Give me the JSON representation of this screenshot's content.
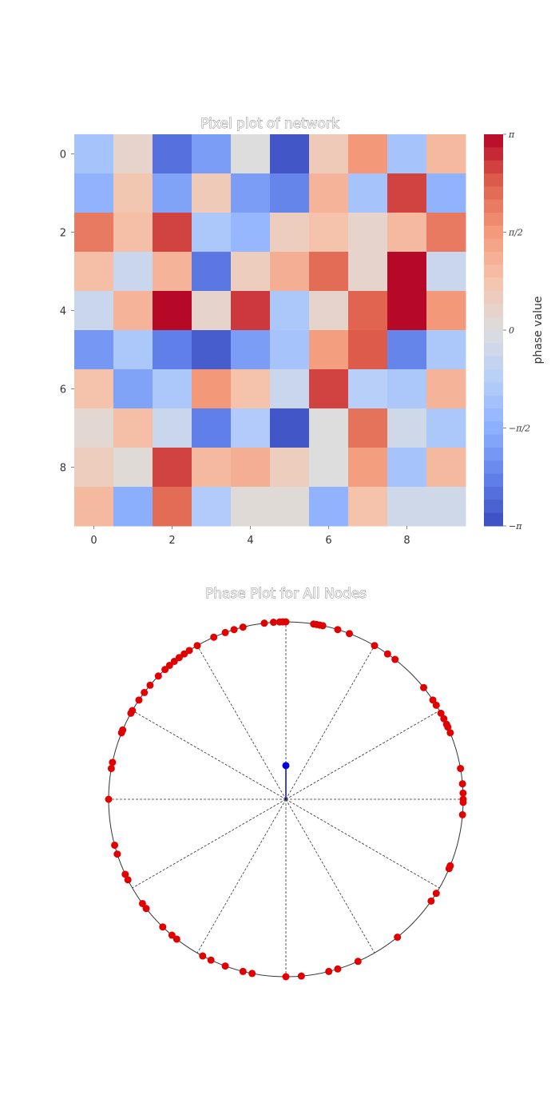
{
  "chart_data": [
    {
      "type": "heatmap",
      "title": "Pixel plot of network",
      "x_ticks": [
        "0",
        "2",
        "4",
        "6",
        "8"
      ],
      "y_ticks": [
        "0",
        "2",
        "4",
        "6",
        "8"
      ],
      "colorbar": {
        "label": "phase value",
        "range": [
          -3.1416,
          3.1416
        ],
        "ticks": [
          {
            "value": 3.1416,
            "label": "π"
          },
          {
            "value": 1.5708,
            "label": "π/2"
          },
          {
            "value": 0,
            "label": "0"
          },
          {
            "value": -1.5708,
            "label": "−π/2"
          },
          {
            "value": -3.1416,
            "label": "−π"
          }
        ],
        "colormap": "coolwarm"
      },
      "values": [
        [
          -1.1,
          0.3,
          -2.6,
          -1.9,
          0.0,
          -3.0,
          0.6,
          1.6,
          -1.1,
          1.0
        ],
        [
          -1.5,
          0.7,
          -1.8,
          0.6,
          -1.9,
          -2.3,
          1.1,
          -1.1,
          2.6,
          -1.5
        ],
        [
          2.0,
          0.9,
          2.6,
          -1.0,
          -1.4,
          0.5,
          0.8,
          0.3,
          1.0,
          2.0
        ],
        [
          0.9,
          -0.4,
          1.1,
          -2.5,
          0.5,
          1.2,
          2.2,
          0.3,
          3.1,
          -0.4
        ],
        [
          -0.4,
          1.1,
          3.1,
          0.3,
          2.7,
          -1.0,
          0.3,
          2.3,
          3.1,
          1.6
        ],
        [
          -2.0,
          -1.0,
          -2.4,
          -2.9,
          -1.9,
          -1.1,
          1.5,
          2.4,
          -2.3,
          -1.0
        ],
        [
          0.8,
          -1.8,
          -1.0,
          1.6,
          0.8,
          -0.4,
          2.6,
          -0.8,
          -1.0,
          1.1
        ],
        [
          0.2,
          0.9,
          -0.4,
          -2.4,
          -0.9,
          -3.0,
          0.0,
          2.1,
          -0.3,
          -1.0
        ],
        [
          0.5,
          0.1,
          2.6,
          1.0,
          1.2,
          0.5,
          0.0,
          1.5,
          -1.1,
          1.0
        ],
        [
          1.0,
          -1.6,
          2.2,
          -0.9,
          0.1,
          0.1,
          -1.5,
          0.8,
          -0.3,
          -0.3
        ]
      ]
    },
    {
      "type": "scatter",
      "title": "Phase Plot for All Nodes",
      "description_kind": "polar unit circle",
      "node_phases_deg": [
        90,
        91,
        92,
        94,
        97,
        104,
        107,
        110,
        114,
        120,
        123,
        125,
        127,
        129,
        131,
        133,
        136,
        140,
        143,
        146,
        150,
        151,
        157,
        158,
        168,
        170,
        180,
        195,
        198,
        205,
        207,
        216,
        218,
        226,
        230,
        232,
        242,
        245,
        250,
        256,
        259,
        270,
        275,
        284,
        287,
        294,
        309,
        325,
        328,
        337,
        338,
        355,
        359,
        0,
        2,
        5,
        10,
        22,
        24,
        25,
        27,
        29,
        32,
        34,
        39,
        52,
        55,
        60,
        69,
        73,
        78,
        79,
        80,
        81
      ],
      "order_parameter": {
        "r": 0.19,
        "angle_deg": 90
      },
      "marker_color": "#e00000",
      "order_color": "#0000dd",
      "spoke_angles_deg": [
        0,
        30,
        60,
        90,
        120,
        150,
        180,
        210,
        240,
        270,
        300,
        330
      ]
    }
  ]
}
